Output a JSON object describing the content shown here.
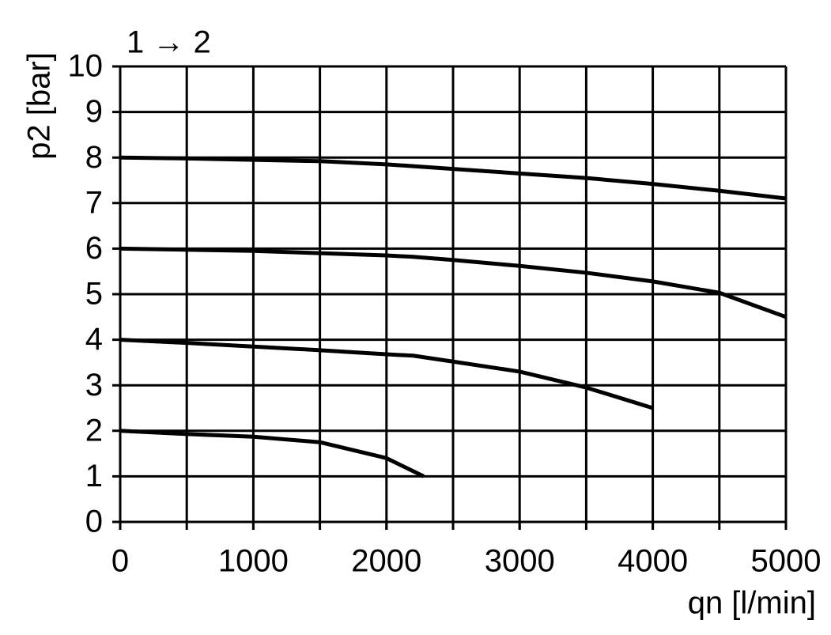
{
  "chart_data": {
    "type": "line",
    "title": "1 → 2",
    "x_label": "qn [l/min]",
    "y_label": "p2 [bar]",
    "xlim": [
      0,
      5000
    ],
    "xticks": [
      0,
      1000,
      2000,
      3000,
      4000,
      5000
    ],
    "xgrid": [
      0,
      500,
      1000,
      1500,
      2000,
      2500,
      3000,
      3500,
      4000,
      4500,
      5000
    ],
    "ylim": [
      0,
      10
    ],
    "yticks": [
      0,
      1,
      2,
      3,
      4,
      5,
      6,
      7,
      8,
      9,
      10
    ],
    "grid": true,
    "series": [
      {
        "color": "#000000",
        "x": [
          0,
          500,
          1000,
          1500,
          2000,
          2500,
          3000,
          3500,
          4000,
          4500,
          5000
        ],
        "values": [
          8,
          7.98,
          7.95,
          7.92,
          7.85,
          7.75,
          7.65,
          7.55,
          7.42,
          7.27,
          7.1
        ]
      },
      {
        "color": "#000000",
        "x": [
          0,
          1000,
          2000,
          2200,
          2500,
          3000,
          3500,
          4000,
          4500,
          5000
        ],
        "values": [
          6,
          5.95,
          5.85,
          5.82,
          5.75,
          5.62,
          5.47,
          5.28,
          5.03,
          4.5
        ]
      },
      {
        "color": "#000000",
        "x": [
          0,
          500,
          1000,
          1500,
          2000,
          2200,
          2500,
          3000,
          3500,
          4000
        ],
        "values": [
          4,
          3.93,
          3.85,
          3.77,
          3.68,
          3.65,
          3.52,
          3.3,
          2.95,
          2.5
        ]
      },
      {
        "color": "#000000",
        "x": [
          0,
          500,
          1000,
          1500,
          2000,
          2280
        ],
        "values": [
          2,
          1.93,
          1.87,
          1.75,
          1.4,
          1.0
        ]
      }
    ]
  }
}
